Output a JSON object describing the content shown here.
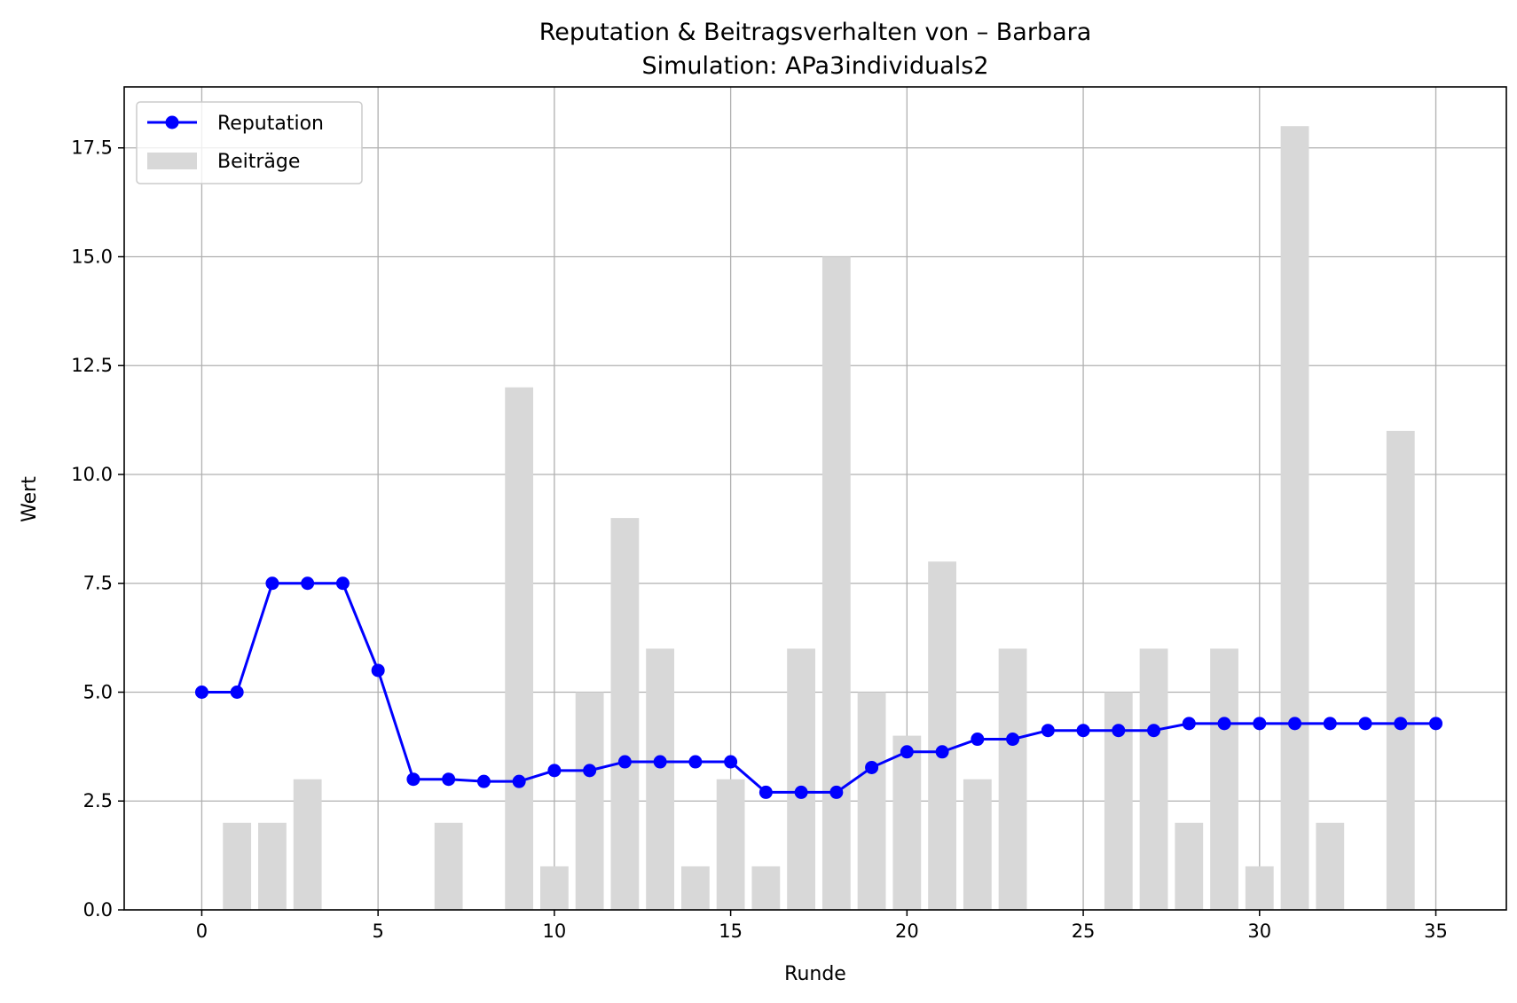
{
  "chart_data": {
    "type": "bar+line",
    "title": "Reputation & Beitragsverhalten von – Barbara",
    "subtitle": "Simulation: APa3individuals2",
    "xlabel": "Runde",
    "ylabel": "Wert",
    "xlim": [
      -2.2,
      37.0
    ],
    "ylim": [
      0,
      18.9
    ],
    "xticks": [
      0,
      5,
      10,
      15,
      20,
      25,
      30,
      35
    ],
    "xtick_labels": [
      "0",
      "5",
      "10",
      "15",
      "20",
      "25",
      "30",
      "35"
    ],
    "yticks": [
      0,
      2.5,
      5,
      7.5,
      10,
      12.5,
      15,
      17.5
    ],
    "ytick_labels": [
      "0.0",
      "2.5",
      "5.0",
      "7.5",
      "10.0",
      "12.5",
      "15.0",
      "17.5"
    ],
    "grid": true,
    "legend_position": "top-left",
    "legend": [
      "Reputation",
      "Beiträge"
    ],
    "colors": {
      "reputation": "#0000ff",
      "contributions": "#d8d8d8",
      "grid": "#b0b0b0",
      "axis": "#000000"
    },
    "x": [
      0,
      1,
      2,
      3,
      4,
      5,
      6,
      7,
      8,
      9,
      10,
      11,
      12,
      13,
      14,
      15,
      16,
      17,
      18,
      19,
      20,
      21,
      22,
      23,
      24,
      25,
      26,
      27,
      28,
      29,
      30,
      31,
      32,
      33,
      34,
      35
    ],
    "series": [
      {
        "name": "Reputation",
        "type": "line",
        "values": [
          5.0,
          5.0,
          7.5,
          7.5,
          7.5,
          5.5,
          3.0,
          3.0,
          2.95,
          2.95,
          3.2,
          3.2,
          3.4,
          3.4,
          3.4,
          3.4,
          2.7,
          2.7,
          2.7,
          3.27,
          3.63,
          3.63,
          3.92,
          3.92,
          4.12,
          4.12,
          4.12,
          4.12,
          4.28,
          4.28,
          4.28,
          4.28,
          4.28,
          4.28,
          4.28,
          4.28
        ]
      },
      {
        "name": "Beiträge",
        "type": "bar",
        "values": [
          0,
          2,
          2,
          3,
          0,
          0,
          0,
          2,
          0,
          12,
          1,
          5,
          9,
          6,
          1,
          3,
          1,
          6,
          15,
          5,
          4,
          8,
          3,
          6,
          0,
          0,
          5,
          6,
          2,
          6,
          1,
          18,
          2,
          0,
          11,
          0
        ]
      }
    ]
  }
}
